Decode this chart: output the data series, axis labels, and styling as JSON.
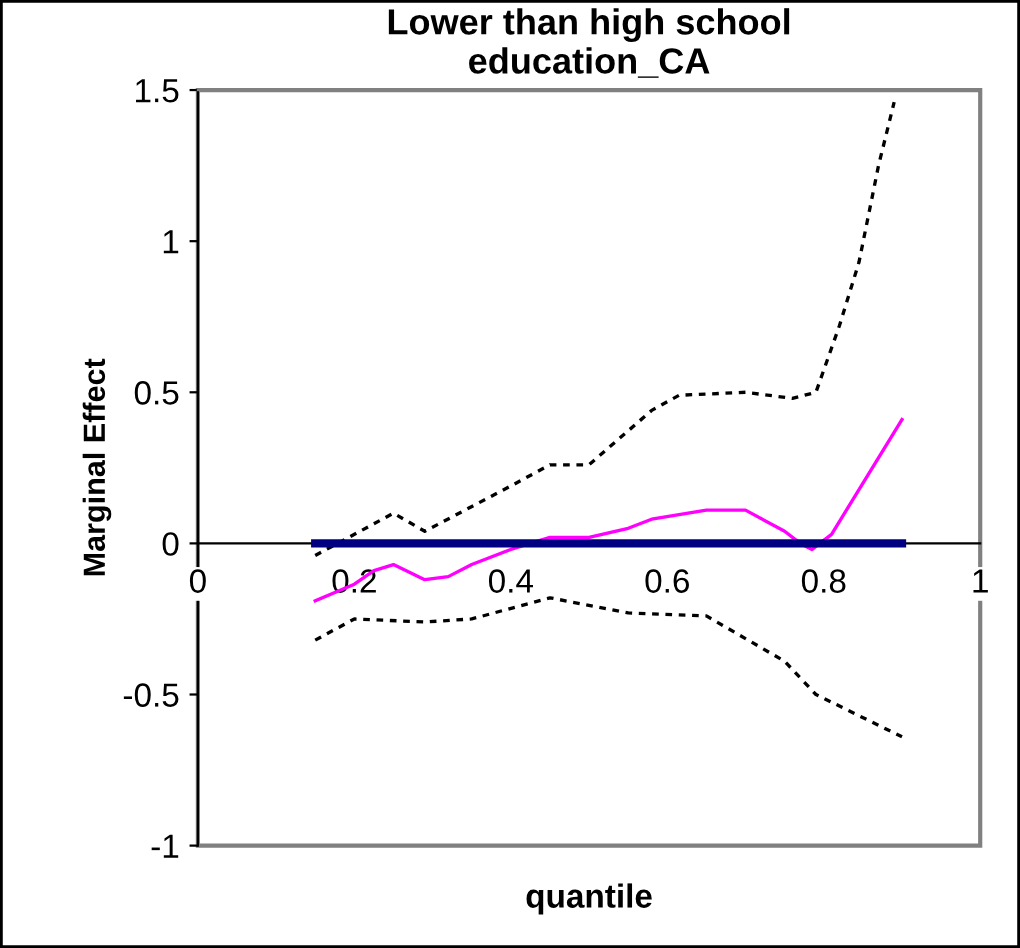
{
  "chart_data": {
    "type": "line",
    "title": "Lower than high school\neducation_CA",
    "xlabel": "quantile",
    "ylabel": "Marginal Effect",
    "xlim": [
      0,
      1
    ],
    "xticks": [
      0,
      0.2,
      0.4,
      0.6,
      0.8,
      1
    ],
    "ylim": [
      -1,
      1.5
    ],
    "yticks": [
      -1,
      -0.5,
      0,
      0.5,
      1,
      1.5
    ],
    "grid": false,
    "legend": false,
    "series": [
      {
        "color": "#ff00ff",
        "line_style": "solid",
        "x": [
          0.15,
          0.2,
          0.225,
          0.25,
          0.29,
          0.32,
          0.35,
          0.4,
          0.45,
          0.5,
          0.55,
          0.58,
          0.65,
          0.7,
          0.75,
          0.77,
          0.785,
          0.81,
          0.9
        ],
        "values": [
          -0.19,
          -0.135,
          -0.09,
          -0.07,
          -0.12,
          -0.11,
          -0.07,
          -0.02,
          0.02,
          0.02,
          0.05,
          0.08,
          0.11,
          0.11,
          0.04,
          0.0,
          -0.02,
          0.03,
          0.41
        ]
      },
      {
        "color": "#000000",
        "line_style": "dashed",
        "x": [
          0.15,
          0.25,
          0.29,
          0.4,
          0.45,
          0.5,
          0.58,
          0.615,
          0.7,
          0.76,
          0.79,
          0.82,
          0.845,
          0.87,
          0.89
        ],
        "values": [
          -0.04,
          0.1,
          0.04,
          0.19,
          0.26,
          0.26,
          0.44,
          0.49,
          0.5,
          0.48,
          0.5,
          0.72,
          0.93,
          1.25,
          1.46
        ]
      },
      {
        "color": "#000000",
        "line_style": "dashed",
        "x": [
          0.15,
          0.2,
          0.29,
          0.35,
          0.45,
          0.55,
          0.65,
          0.75,
          0.79,
          0.9
        ],
        "values": [
          -0.32,
          -0.25,
          -0.26,
          -0.25,
          -0.18,
          -0.23,
          -0.24,
          -0.39,
          -0.5,
          -0.64
        ]
      },
      {
        "color": "#000080",
        "line_style": "solid",
        "x": [
          0.15,
          0.9
        ],
        "values": [
          0,
          0
        ]
      }
    ]
  }
}
